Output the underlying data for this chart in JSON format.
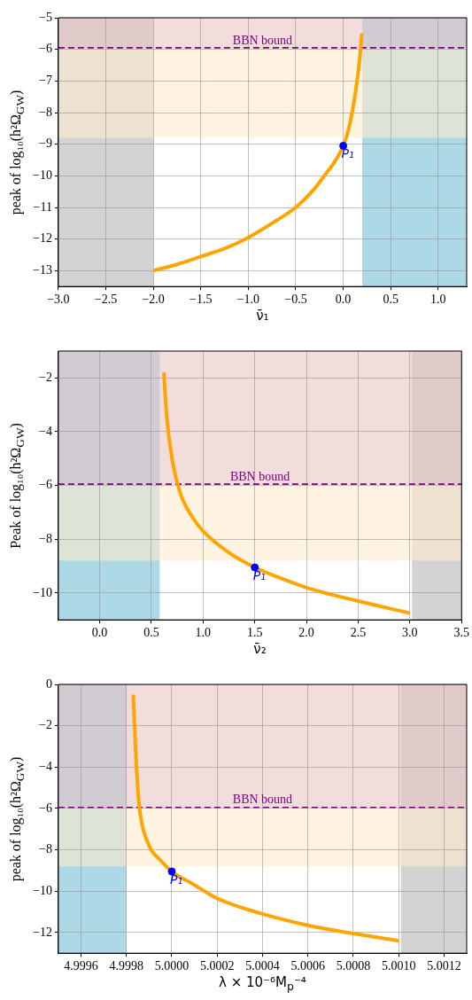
{
  "chart_data": [
    {
      "type": "line",
      "xlabel": "ν̄₁",
      "ylabel": "peak of log₁₀(h²Ω$_{GW}$)",
      "grid": true,
      "xlim": [
        -3.0,
        1.3
      ],
      "ylim": [
        -13.5,
        -5
      ],
      "xticks": [
        {
          "value": -3,
          "label": "−3.0"
        },
        {
          "value": -2.5,
          "label": "−2.5"
        },
        {
          "value": -2,
          "label": "−2.0"
        },
        {
          "value": -1.5,
          "label": "−1.5"
        },
        {
          "value": -1,
          "label": "−1.0"
        },
        {
          "value": -0.5,
          "label": "−0.5"
        },
        {
          "value": 0,
          "label": "0.0"
        },
        {
          "value": 0.5,
          "label": "0.5"
        },
        {
          "value": 1,
          "label": "1.0"
        }
      ],
      "yticks": [
        {
          "value": -13,
          "label": "−13"
        },
        {
          "value": -12,
          "label": "−12"
        },
        {
          "value": -11,
          "label": "−11"
        },
        {
          "value": -10,
          "label": "−10"
        },
        {
          "value": -9,
          "label": "−9"
        },
        {
          "value": -8,
          "label": "−8"
        },
        {
          "value": -7,
          "label": "−7"
        },
        {
          "value": -6,
          "label": "−6"
        },
        {
          "value": -5,
          "label": "−5"
        }
      ],
      "bands": [
        {
          "axis": "x",
          "from": -3.0,
          "to": -2.0,
          "color": "#d3d3d3"
        },
        {
          "axis": "x",
          "from": 0.2,
          "to": 1.3,
          "color": "#add8e6"
        },
        {
          "axis": "y",
          "from": -5.95,
          "to": -5,
          "color": "#e9c5c5"
        },
        {
          "axis": "y",
          "from": -8.8,
          "to": -5.95,
          "color": "#ffebcd"
        }
      ],
      "ref_lines": [
        {
          "axis": "y",
          "value": -5.95,
          "label": "BBN bound",
          "color": "#800080",
          "line_style": "dashed"
        }
      ],
      "annotations": [
        {
          "text": "P₁",
          "x": 0,
          "y": -9.05
        }
      ],
      "series": [
        {
          "type": "line",
          "color": "#ffa500",
          "marker": "none",
          "x": [
            -2,
            -1.75,
            -1.5,
            -1.25,
            -1,
            -0.75,
            -0.5,
            -0.3,
            -0.2,
            -0.1,
            0,
            0.05,
            0.1,
            0.15,
            0.18,
            0.195
          ],
          "values": [
            -13,
            -12.8,
            -12.55,
            -12.3,
            -11.95,
            -11.5,
            -11.0,
            -10.4,
            -10.0,
            -9.6,
            -9.05,
            -8.6,
            -7.9,
            -6.9,
            -6.1,
            -5.5
          ]
        },
        {
          "type": "scatter",
          "color": "#0000ff",
          "marker": "circle",
          "x": [
            0
          ],
          "values": [
            -9.05
          ]
        }
      ]
    },
    {
      "type": "line",
      "xlabel": "ν̄₂",
      "ylabel": "Peak of log₁₀(h²Ω$_{GW}$)",
      "grid": true,
      "xlim": [
        -0.4,
        3.5
      ],
      "ylim": [
        -11,
        -1
      ],
      "xticks": [
        {
          "value": 0,
          "label": "0.0"
        },
        {
          "value": 0.5,
          "label": "0.5"
        },
        {
          "value": 1,
          "label": "1.0"
        },
        {
          "value": 1.5,
          "label": "1.5"
        },
        {
          "value": 2,
          "label": "2.0"
        },
        {
          "value": 2.5,
          "label": "2.5"
        },
        {
          "value": 3,
          "label": "3.0"
        },
        {
          "value": 3.5,
          "label": "3.5"
        }
      ],
      "yticks": [
        {
          "value": -10,
          "label": "−10"
        },
        {
          "value": -8,
          "label": "−8"
        },
        {
          "value": -6,
          "label": "−6"
        },
        {
          "value": -4,
          "label": "−4"
        },
        {
          "value": -2,
          "label": "−2"
        }
      ],
      "bands": [
        {
          "axis": "x",
          "from": -0.4,
          "to": 0.58,
          "color": "#add8e6"
        },
        {
          "axis": "x",
          "from": 3.02,
          "to": 3.5,
          "color": "#d3d3d3"
        },
        {
          "axis": "y",
          "from": -5.95,
          "to": -1,
          "color": "#e9c5c5"
        },
        {
          "axis": "y",
          "from": -8.8,
          "to": -5.95,
          "color": "#ffebcd"
        }
      ],
      "ref_lines": [
        {
          "axis": "y",
          "value": -5.95,
          "label": "BBN bound",
          "color": "#800080",
          "line_style": "dashed"
        }
      ],
      "annotations": [
        {
          "text": "P₁",
          "x": 1.5,
          "y": -9.05
        }
      ],
      "series": [
        {
          "type": "line",
          "color": "#ffa500",
          "marker": "none",
          "x": [
            0.62,
            0.65,
            0.7,
            0.75,
            0.8,
            0.9,
            1.0,
            1.25,
            1.5,
            1.75,
            2.0,
            2.5,
            3.0
          ],
          "values": [
            -1.8,
            -3.5,
            -5.0,
            -5.9,
            -6.5,
            -7.2,
            -7.7,
            -8.5,
            -9.05,
            -9.45,
            -9.8,
            -10.3,
            -10.75
          ]
        },
        {
          "type": "scatter",
          "color": "#0000ff",
          "marker": "circle",
          "x": [
            1.5
          ],
          "values": [
            -9.05
          ]
        }
      ]
    },
    {
      "type": "line",
      "xlabel": "λ × 10⁻⁶M$_{p}$⁻⁴",
      "ylabel": "peak of log₁₀(h²Ω$_{GW}$)",
      "grid": true,
      "xlim": [
        4.9995,
        5.0013
      ],
      "ylim": [
        -13,
        0
      ],
      "xticks": [
        {
          "value": 4.9996,
          "label": "4.9996"
        },
        {
          "value": 4.9998,
          "label": "4.9998"
        },
        {
          "value": 5.0,
          "label": "5.0000"
        },
        {
          "value": 5.0002,
          "label": "5.0002"
        },
        {
          "value": 5.0004,
          "label": "5.0004"
        },
        {
          "value": 5.0006,
          "label": "5.0006"
        },
        {
          "value": 5.0008,
          "label": "5.0008"
        },
        {
          "value": 5.001,
          "label": "5.0010"
        },
        {
          "value": 5.0012,
          "label": "5.0012"
        }
      ],
      "yticks": [
        {
          "value": -12,
          "label": "−12"
        },
        {
          "value": -10,
          "label": "−10"
        },
        {
          "value": -8,
          "label": "−8"
        },
        {
          "value": -6,
          "label": "−6"
        },
        {
          "value": -4,
          "label": "−4"
        },
        {
          "value": -2,
          "label": "−2"
        },
        {
          "value": 0,
          "label": "0"
        }
      ],
      "bands": [
        {
          "axis": "x",
          "from": 4.9995,
          "to": 4.9998,
          "color": "#add8e6"
        },
        {
          "axis": "x",
          "from": 5.00101,
          "to": 5.0013,
          "color": "#d3d3d3"
        },
        {
          "axis": "y",
          "from": -5.95,
          "to": 0,
          "color": "#e9c5c5"
        },
        {
          "axis": "y",
          "from": -8.8,
          "to": -5.95,
          "color": "#ffebcd"
        }
      ],
      "ref_lines": [
        {
          "axis": "y",
          "value": -5.95,
          "label": "BBN bound",
          "color": "#800080",
          "line_style": "dashed"
        }
      ],
      "annotations": [
        {
          "text": "P₁",
          "x": 5.0,
          "y": -9.05
        }
      ],
      "series": [
        {
          "type": "line",
          "color": "#ffa500",
          "marker": "none",
          "x": [
            4.99983,
            4.99984,
            4.99985,
            4.99986,
            4.9999,
            4.99995,
            5.0,
            5.0001,
            5.0002,
            5.0004,
            5.0006,
            5.0008,
            5.001
          ],
          "values": [
            -0.5,
            -3.0,
            -5.0,
            -6.2,
            -7.8,
            -8.5,
            -9.05,
            -9.7,
            -10.35,
            -11.1,
            -11.65,
            -12.05,
            -12.4
          ]
        },
        {
          "type": "scatter",
          "color": "#0000ff",
          "marker": "circle",
          "x": [
            5.0
          ],
          "values": [
            -9.05
          ]
        }
      ]
    }
  ]
}
